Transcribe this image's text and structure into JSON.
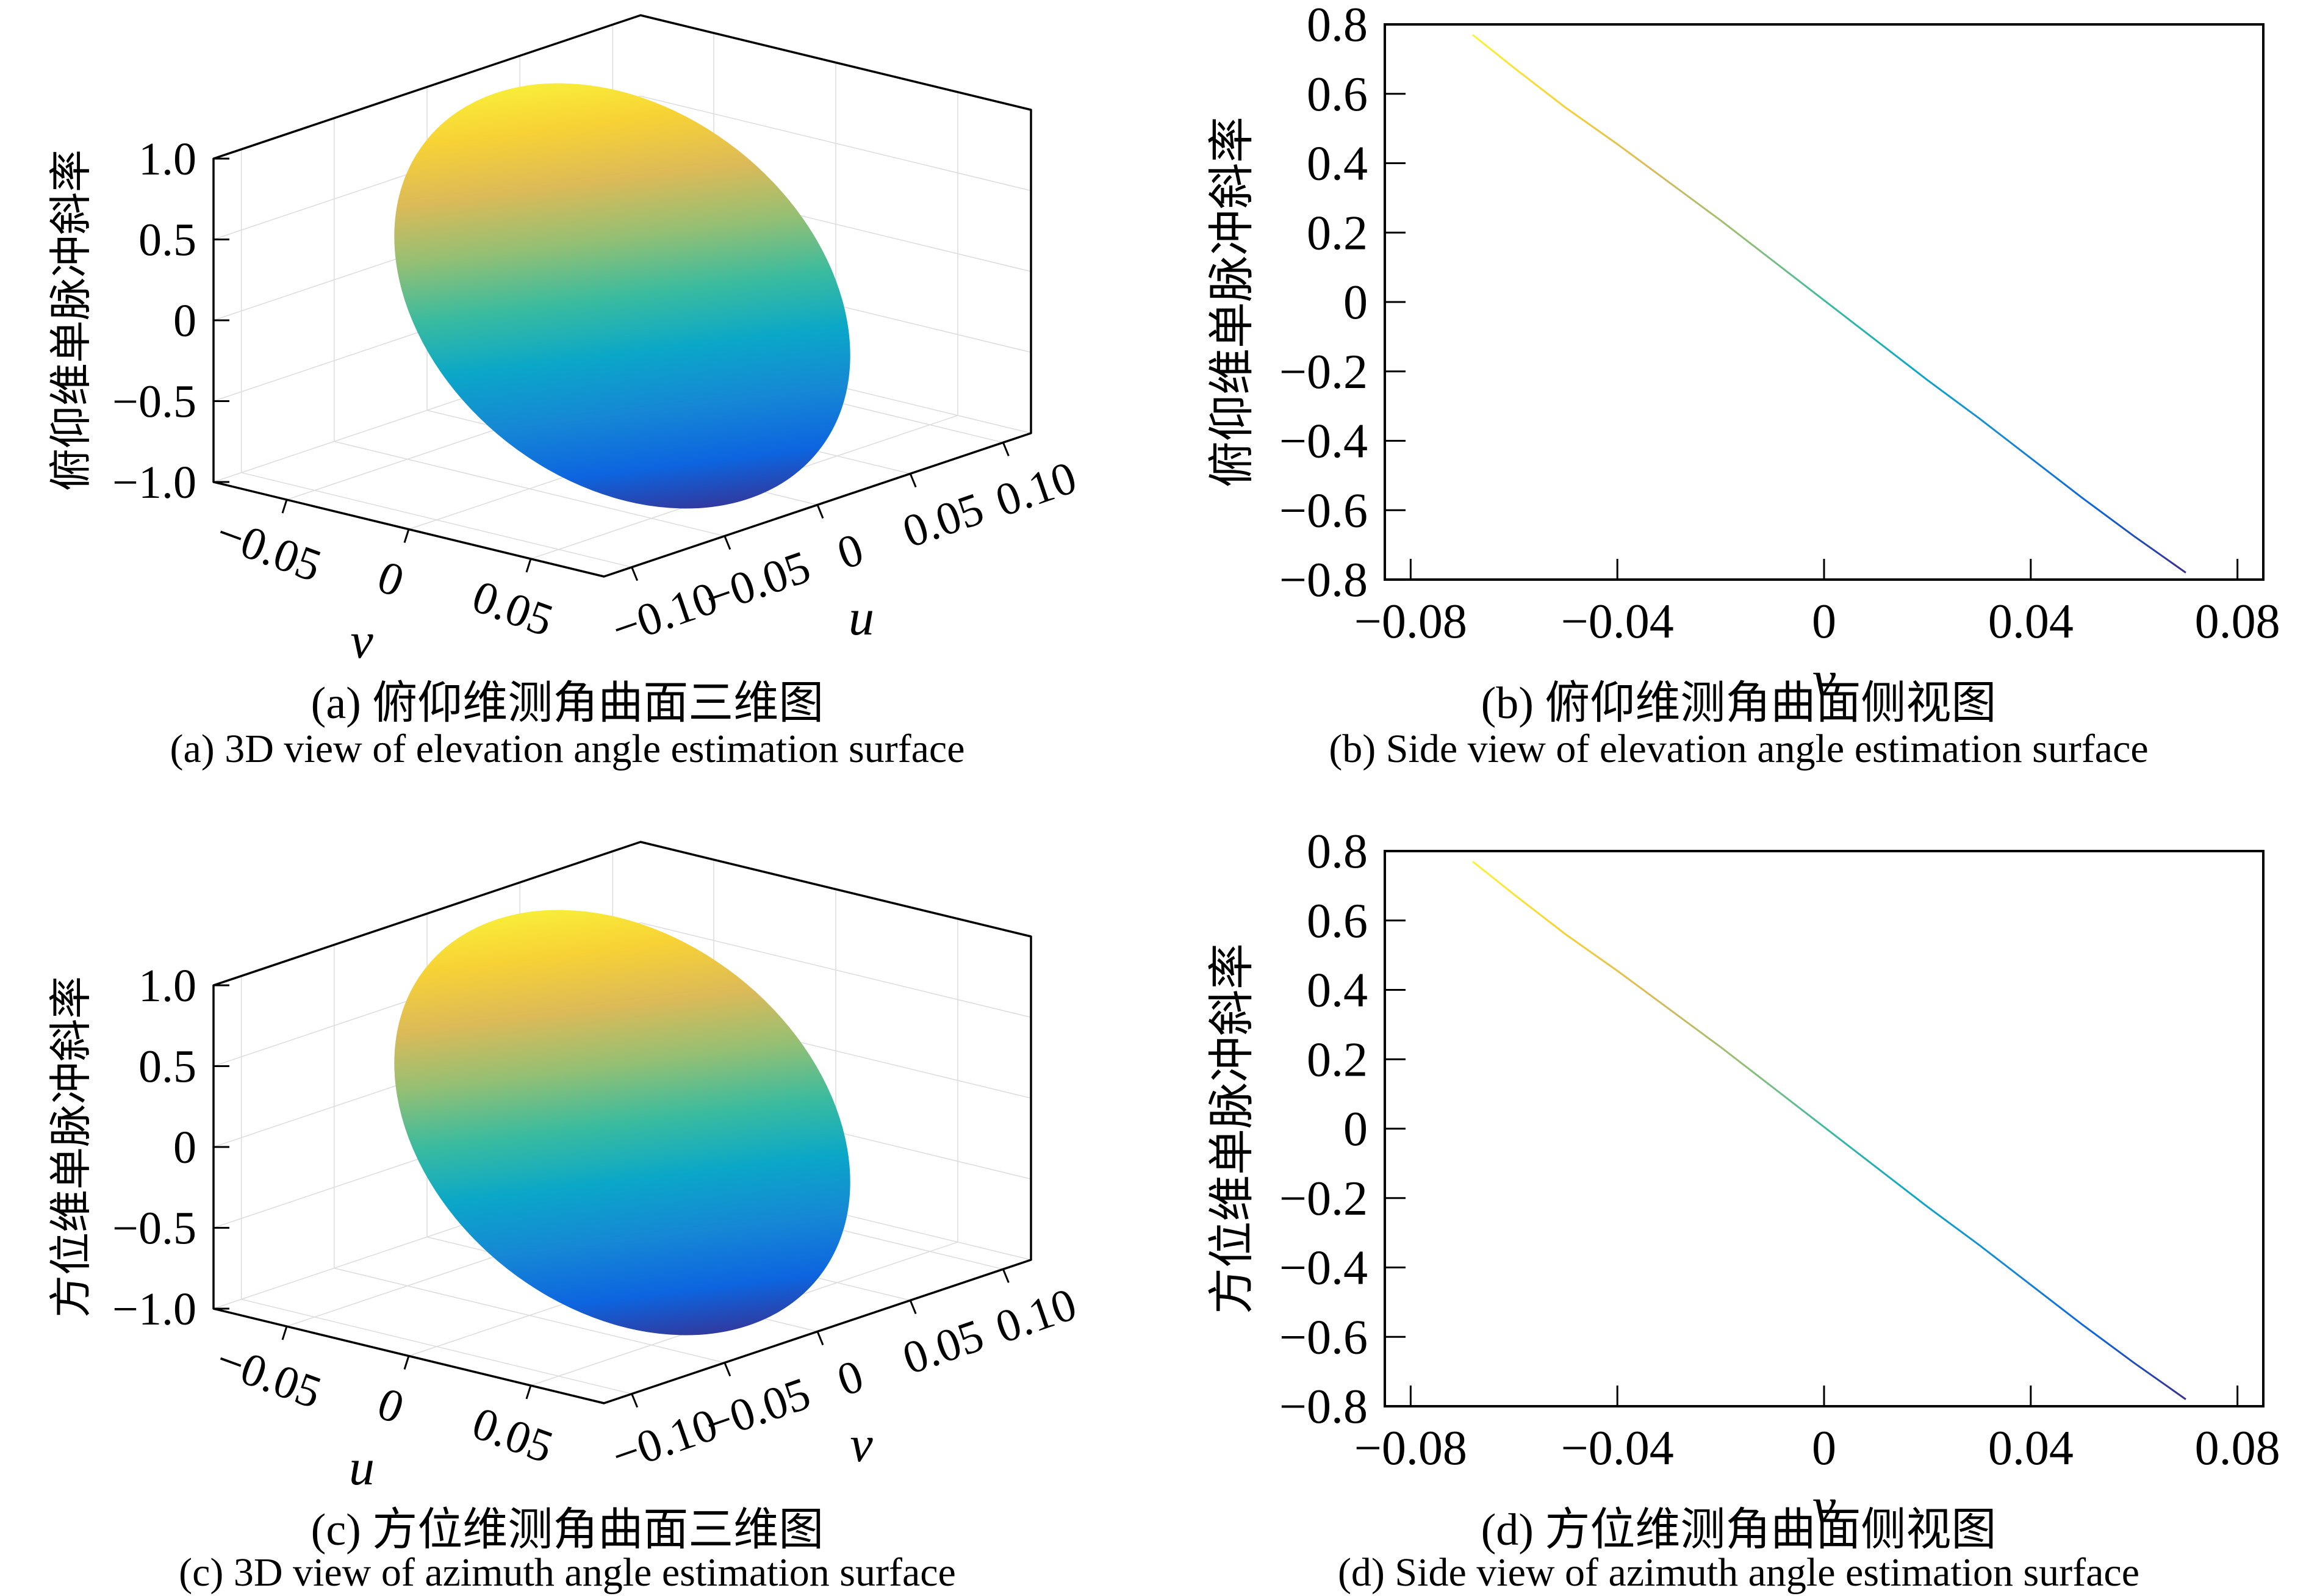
{
  "page": {
    "background": "#ffffff"
  },
  "colormap": {
    "name": "parula-like (yellow at max to dark blue at min)",
    "stops": [
      "#f9f43a",
      "#f7d235",
      "#dcba58",
      "#94bf74",
      "#3bbb9e",
      "#0ba7c8",
      "#1688d4",
      "#0d65df",
      "#3a2f8f"
    ]
  },
  "chart_data": [
    {
      "id": "a",
      "type": "surface3d",
      "caption_zh": "(a) 俯仰维测角曲面三维图",
      "caption_en": "(a) 3D view of elevation angle estimation surface",
      "z_axis": {
        "label": "俯仰维单脉冲斜率",
        "values": [
          -1,
          -0.5,
          0,
          0.5,
          1
        ],
        "labels": [
          "−1.0",
          "−0.5",
          "0",
          "0.5",
          "1.0"
        ],
        "range": [
          -1,
          1
        ]
      },
      "left_axis": {
        "label": "v",
        "values": [
          -0.05,
          0,
          0.05
        ],
        "labels": [
          "−0.05",
          "0",
          "0.05"
        ],
        "range": [
          -0.08,
          0.08
        ]
      },
      "right_axis": {
        "label": "u",
        "values": [
          -0.1,
          -0.05,
          0,
          0.05,
          0.1
        ],
        "labels": [
          "−0.10",
          "−0.05",
          "0",
          "0.05",
          "0.10"
        ],
        "range": [
          -0.115,
          0.115
        ]
      },
      "surface": {
        "shape": "tilted elliptical disk",
        "u_extent": [
          -0.1,
          0.1
        ],
        "v_extent": [
          -0.07,
          0.07
        ],
        "z_extent": [
          -0.8,
          0.8
        ],
        "colormap": "parula-like",
        "grid": "on"
      }
    },
    {
      "id": "b",
      "type": "line",
      "caption_zh": "(b) 俯仰维测角曲面侧视图",
      "caption_en": "(b) Side view of elevation angle estimation surface",
      "xlabel": "v",
      "ylabel": "俯仰维单脉冲斜率",
      "x_ticks": {
        "values": [
          -0.08,
          -0.04,
          0,
          0.04,
          0.08
        ],
        "labels": [
          "−0.08",
          "−0.04",
          "0",
          "0.04",
          "0.08"
        ]
      },
      "y_ticks": {
        "values": [
          0.8,
          0.6,
          0.4,
          0.2,
          0,
          -0.2,
          -0.4,
          -0.6,
          -0.8
        ],
        "labels": [
          "0.8",
          "0.6",
          "0.4",
          "0.2",
          "0",
          "−0.2",
          "−0.4",
          "−0.6",
          "−0.8"
        ]
      },
      "xlim": [
        -0.085,
        0.085
      ],
      "ylim": [
        -0.8,
        0.8
      ],
      "grid": "off",
      "line_color": "gradient mapped to y (parula-like)",
      "x": [
        -0.068,
        -0.06,
        -0.05,
        -0.04,
        -0.03,
        -0.02,
        -0.01,
        0,
        0.01,
        0.02,
        0.03,
        0.04,
        0.05,
        0.06,
        0.07
      ],
      "y": [
        0.77,
        0.675,
        0.56,
        0.455,
        0.345,
        0.235,
        0.12,
        0.005,
        -0.11,
        -0.225,
        -0.335,
        -0.45,
        -0.565,
        -0.675,
        -0.78
      ]
    },
    {
      "id": "c",
      "type": "surface3d",
      "caption_zh": "(c) 方位维测角曲面三维图",
      "caption_en": "(c) 3D view of azimuth angle estimation surface",
      "z_axis": {
        "label": "方位维单脉冲斜率",
        "values": [
          -1,
          -0.5,
          0,
          0.5,
          1
        ],
        "labels": [
          "−1.0",
          "−0.5",
          "0",
          "0.5",
          "1.0"
        ],
        "range": [
          -1,
          1
        ]
      },
      "left_axis": {
        "label": "u",
        "values": [
          -0.05,
          0,
          0.05
        ],
        "labels": [
          "−0.05",
          "0",
          "0.05"
        ],
        "range": [
          -0.08,
          0.08
        ]
      },
      "right_axis": {
        "label": "v",
        "values": [
          -0.1,
          -0.05,
          0,
          0.05,
          0.1
        ],
        "labels": [
          "−0.10",
          "−0.05",
          "0",
          "0.05",
          "0.10"
        ],
        "range": [
          -0.115,
          0.115
        ]
      },
      "surface": {
        "shape": "tilted elliptical disk",
        "u_extent": [
          -0.1,
          0.1
        ],
        "v_extent": [
          -0.07,
          0.07
        ],
        "z_extent": [
          -0.8,
          0.8
        ],
        "colormap": "parula-like",
        "grid": "on"
      }
    },
    {
      "id": "d",
      "type": "line",
      "caption_zh": "(d) 方位维测角曲面侧视图",
      "caption_en": "(d) Side view of azimuth angle estimation surface",
      "xlabel": "v",
      "ylabel": "方位维单脉冲斜率",
      "x_ticks": {
        "values": [
          -0.08,
          -0.04,
          0,
          0.04,
          0.08
        ],
        "labels": [
          "−0.08",
          "−0.04",
          "0",
          "0.04",
          "0.08"
        ]
      },
      "y_ticks": {
        "values": [
          0.8,
          0.6,
          0.4,
          0.2,
          0,
          -0.2,
          -0.4,
          -0.6,
          -0.8
        ],
        "labels": [
          "0.8",
          "0.6",
          "0.4",
          "0.2",
          "0",
          "−0.2",
          "−0.4",
          "−0.6",
          "−0.8"
        ]
      },
      "xlim": [
        -0.085,
        0.085
      ],
      "ylim": [
        -0.8,
        0.8
      ],
      "grid": "off",
      "line_color": "gradient mapped to y (parula-like)",
      "x": [
        -0.068,
        -0.06,
        -0.05,
        -0.04,
        -0.03,
        -0.02,
        -0.01,
        0,
        0.01,
        0.02,
        0.03,
        0.04,
        0.05,
        0.06,
        0.07
      ],
      "y": [
        0.77,
        0.675,
        0.56,
        0.455,
        0.345,
        0.235,
        0.12,
        0.005,
        -0.11,
        -0.225,
        -0.335,
        -0.45,
        -0.565,
        -0.675,
        -0.78
      ]
    }
  ]
}
